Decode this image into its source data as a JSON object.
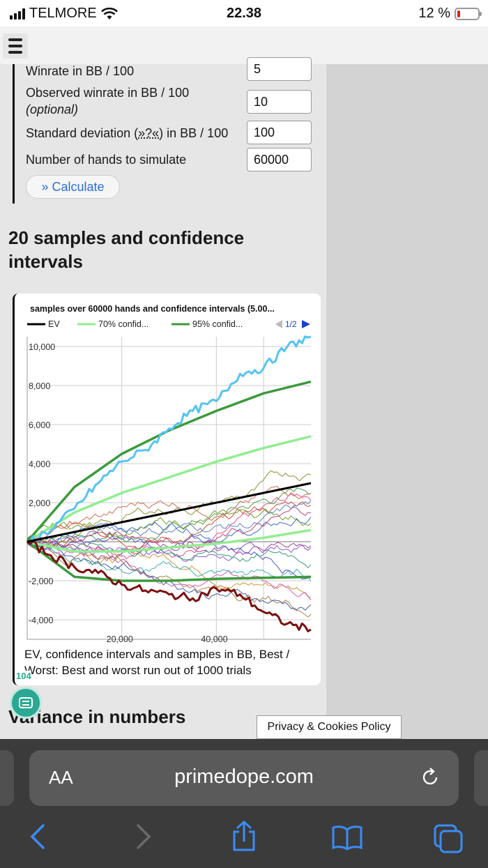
{
  "status_bar": {
    "carrier": "TELMORE",
    "time": "22.38",
    "battery": "12 %",
    "battery_level": 0.12
  },
  "form": {
    "winrate_label": "Winrate in BB / 100",
    "winrate_value": "5",
    "observed_label": "Observed winrate in BB / 100",
    "observed_optional": "(optional)",
    "observed_value": "10",
    "stddev_label_prefix": "Standard deviation (",
    "stddev_hint": "»?«",
    "stddev_label_suffix": ") in BB / 100",
    "stddev_value": "100",
    "hands_label": "Number of hands to simulate",
    "hands_value": "60000",
    "calculate_label": "» Calculate"
  },
  "section_title": "20 samples and confidence intervals",
  "chart_data": {
    "type": "line",
    "title": "samples over 60000 hands and confidence intervals (5.00...",
    "legend": [
      {
        "name": "EV",
        "color": "#000000"
      },
      {
        "name": "70% confid...",
        "color": "#90ee90"
      },
      {
        "name": "95% confid...",
        "color": "#3c9a3c"
      }
    ],
    "legend_page": "1/2",
    "x_ticks": [
      "20,000",
      "40,000"
    ],
    "y_ticks": [
      "10,000",
      "8,000",
      "6,000",
      "4,000",
      "2,000",
      "-2,000",
      "-4,000"
    ],
    "xlim": [
      0,
      60000
    ],
    "ylim": [
      -5000,
      10500
    ],
    "ev": {
      "x": [
        0,
        60000
      ],
      "y": [
        0,
        3000
      ]
    },
    "ci70": {
      "x": [
        0,
        10000,
        20000,
        30000,
        40000,
        50000,
        60000
      ],
      "upper": [
        0,
        1500,
        2500,
        3300,
        4100,
        4800,
        5400
      ],
      "lower": [
        0,
        -500,
        -500,
        -300,
        -100,
        200,
        600
      ]
    },
    "ci95": {
      "x": [
        0,
        10000,
        20000,
        30000,
        40000,
        50000,
        60000
      ],
      "upper": [
        0,
        2800,
        4500,
        5700,
        6700,
        7600,
        8200
      ],
      "lower": [
        0,
        -1800,
        -2000,
        -2000,
        -1900,
        -1850,
        -1800
      ]
    },
    "best_run": {
      "color": "#55c3f5",
      "x": [
        0,
        5000,
        10000,
        15000,
        20000,
        25000,
        30000,
        35000,
        40000,
        45000,
        50000,
        55000,
        60000
      ],
      "y": [
        0,
        600,
        1700,
        3000,
        4100,
        4700,
        5800,
        6700,
        7200,
        8600,
        8900,
        10000,
        10500
      ]
    },
    "worst_run": {
      "color": "#7a1010",
      "x": [
        0,
        5000,
        10000,
        15000,
        20000,
        25000,
        30000,
        35000,
        40000,
        45000,
        50000,
        55000,
        60000
      ],
      "y": [
        0,
        -700,
        -1300,
        -1600,
        -2200,
        -2500,
        -2700,
        -2900,
        -2400,
        -2700,
        -3600,
        -4200,
        -4500
      ]
    },
    "caption": "EV, confidence intervals and samples in BB, Best / Worst: Best and worst run out of 1000 trials",
    "badge": "104"
  },
  "variance_title": "Variance in numbers",
  "privacy_label": "Privacy & Cookies Policy",
  "browser": {
    "aa_label": "AA",
    "domain": "primedope.com"
  }
}
